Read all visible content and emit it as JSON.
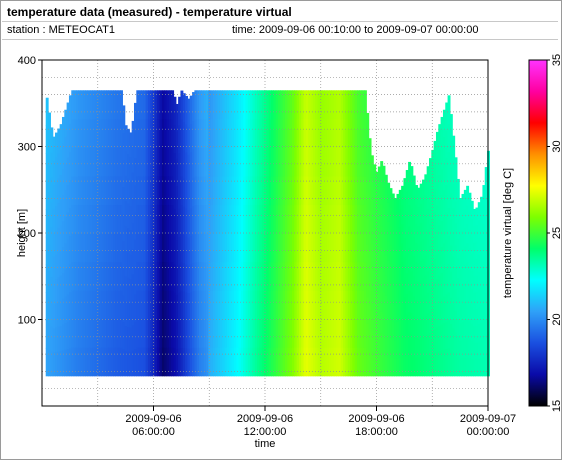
{
  "header": {
    "title": "temperature data (measured) - temperature virtual",
    "station": "station : METEOCAT1",
    "time_range": "time: 2009-09-06 00:10:00 to 2009-09-07 00:00:00"
  },
  "chart_data": {
    "type": "heatmap",
    "xlabel": "time",
    "ylabel": "height [m]",
    "colorbar_label": "temperature virtual [deg C]",
    "x_ticks": [
      {
        "hour": 6,
        "line1": "2009-09-06",
        "line2": "06:00:00"
      },
      {
        "hour": 12,
        "line1": "2009-09-06",
        "line2": "12:00:00"
      },
      {
        "hour": 18,
        "line1": "2009-09-06",
        "line2": "18:00:00"
      },
      {
        "hour": 24,
        "line1": "2009-09-07",
        "line2": "00:00:00"
      }
    ],
    "xlim": [
      0,
      24
    ],
    "ylim": [
      0,
      400
    ],
    "y_ticks": [
      100,
      200,
      300,
      400
    ],
    "colorbar_range": [
      15,
      35
    ],
    "colorbar_ticks": [
      15,
      20,
      25,
      30,
      35
    ],
    "height_range": [
      35,
      365
    ],
    "colormap": [
      "#000000",
      "#0a0aa8",
      "#1a4fe0",
      "#2fa0f8",
      "#00ffff",
      "#00ff6a",
      "#7dff00",
      "#ffff00",
      "#ff9000",
      "#ff0000",
      "#ff00a0",
      "#ff33ff"
    ],
    "temperature_profile": [
      {
        "hour": 0.2,
        "temp": 20.8
      },
      {
        "hour": 2,
        "temp": 19.9
      },
      {
        "hour": 4,
        "temp": 19.2
      },
      {
        "hour": 5.5,
        "temp": 18.9
      },
      {
        "hour": 6,
        "temp": 17.8
      },
      {
        "hour": 6.5,
        "temp": 16.4
      },
      {
        "hour": 7.2,
        "temp": 17.2
      },
      {
        "hour": 8,
        "temp": 19.0
      },
      {
        "hour": 8.5,
        "temp": 20.0
      },
      {
        "hour": 9.5,
        "temp": 21.0
      },
      {
        "hour": 10.5,
        "temp": 22.0
      },
      {
        "hour": 11.5,
        "temp": 23.3
      },
      {
        "hour": 12.5,
        "temp": 24.5
      },
      {
        "hour": 13.5,
        "temp": 25.8
      },
      {
        "hour": 14.2,
        "temp": 27.2
      },
      {
        "hour": 15,
        "temp": 26.5
      },
      {
        "hour": 16,
        "temp": 26.9
      },
      {
        "hour": 17,
        "temp": 25.4
      },
      {
        "hour": 18,
        "temp": 24.8
      },
      {
        "hour": 19.5,
        "temp": 24.0
      },
      {
        "hour": 21,
        "temp": 23.6
      },
      {
        "hour": 22.5,
        "temp": 23.2
      },
      {
        "hour": 24,
        "temp": 23.0
      }
    ],
    "top_height_profile": [
      {
        "hour": 0.2,
        "height": 365
      },
      {
        "hour": 0.6,
        "height": 310
      },
      {
        "hour": 1,
        "height": 325
      },
      {
        "hour": 1.3,
        "height": 345
      },
      {
        "hour": 1.6,
        "height": 365
      },
      {
        "hour": 4.3,
        "height": 365
      },
      {
        "hour": 4.5,
        "height": 325
      },
      {
        "hour": 4.8,
        "height": 315
      },
      {
        "hour": 5.1,
        "height": 365
      },
      {
        "hour": 7.1,
        "height": 365
      },
      {
        "hour": 7.2,
        "height": 345
      },
      {
        "hour": 7.5,
        "height": 365
      },
      {
        "hour": 7.9,
        "height": 355
      },
      {
        "hour": 8.2,
        "height": 365
      },
      {
        "hour": 17.4,
        "height": 365
      },
      {
        "hour": 17.7,
        "height": 295
      },
      {
        "hour": 18,
        "height": 270
      },
      {
        "hour": 18.3,
        "height": 285
      },
      {
        "hour": 18.6,
        "height": 260
      },
      {
        "hour": 19,
        "height": 240
      },
      {
        "hour": 19.4,
        "height": 255
      },
      {
        "hour": 19.8,
        "height": 285
      },
      {
        "hour": 20.2,
        "height": 250
      },
      {
        "hour": 20.6,
        "height": 265
      },
      {
        "hour": 21,
        "height": 295
      },
      {
        "hour": 21.3,
        "height": 320
      },
      {
        "hour": 21.6,
        "height": 340
      },
      {
        "hour": 21.9,
        "height": 360
      },
      {
        "hour": 22.2,
        "height": 300
      },
      {
        "hour": 22.5,
        "height": 240
      },
      {
        "hour": 22.9,
        "height": 255
      },
      {
        "hour": 23.3,
        "height": 225
      },
      {
        "hour": 23.7,
        "height": 245
      },
      {
        "hour": 24,
        "height": 295
      }
    ]
  }
}
